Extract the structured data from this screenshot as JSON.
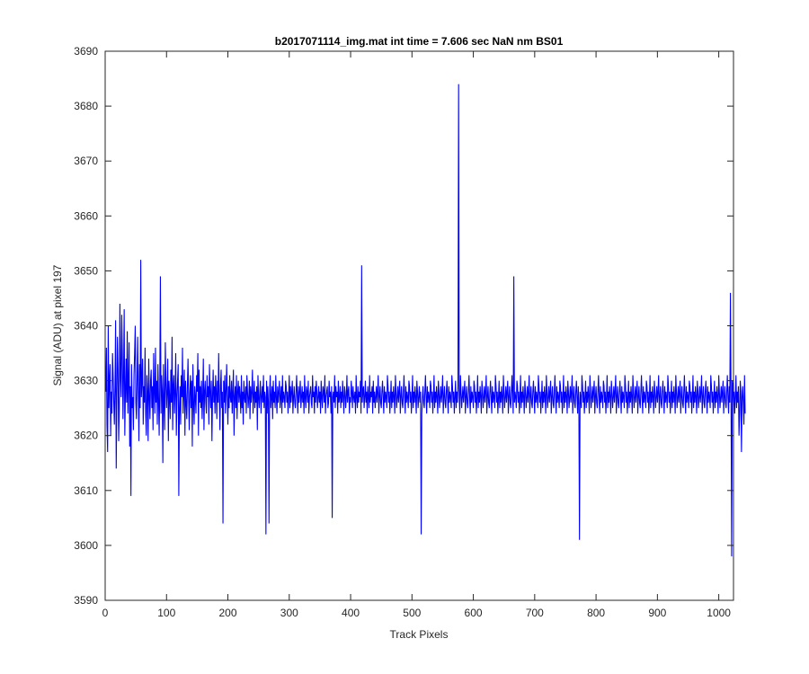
{
  "chart_data": {
    "type": "line",
    "title": "b2017071114_img.mat int time = 7.606 sec  NaN nm BS01",
    "xlabel": "Track Pixels",
    "ylabel": "Signal (ADU) at pixel 197",
    "xlim": [
      0,
      1024
    ],
    "ylim": [
      3590,
      3690
    ],
    "x_ticks": [
      0,
      100,
      200,
      300,
      400,
      500,
      600,
      700,
      800,
      900,
      1000
    ],
    "y_ticks": [
      3590,
      3600,
      3610,
      3620,
      3630,
      3640,
      3650,
      3660,
      3670,
      3680,
      3690
    ],
    "grid": false,
    "legend": "none",
    "series": [
      {
        "color": "#0000ff",
        "x_start": 1,
        "x_step": 1,
        "points_note": "",
        "values": [
          3628,
          3636,
          3622,
          3617,
          3640,
          3625,
          3630,
          3633,
          3620,
          3628,
          3624,
          3635,
          3631,
          3626,
          3622,
          3629,
          3641,
          3614,
          3627,
          3638,
          3632,
          3619,
          3625,
          3644,
          3630,
          3627,
          3642,
          3635,
          3623,
          3631,
          3643,
          3620,
          3628,
          3634,
          3626,
          3639,
          3624,
          3630,
          3637,
          3618,
          3629,
          3609,
          3633,
          3625,
          3627,
          3621,
          3631,
          3635,
          3640,
          3626,
          3623,
          3630,
          3638,
          3628,
          3619,
          3633,
          3625,
          3652,
          3627,
          3630,
          3634,
          3622,
          3629,
          3626,
          3636,
          3624,
          3620,
          3631,
          3628,
          3619,
          3634,
          3627,
          3623,
          3630,
          3632,
          3625,
          3629,
          3621,
          3635,
          3628,
          3624,
          3636,
          3626,
          3630,
          3622,
          3633,
          3627,
          3620,
          3629,
          3649,
          3624,
          3631,
          3628,
          3615,
          3633,
          3626,
          3621,
          3637,
          3630,
          3625,
          3628,
          3634,
          3619,
          3630,
          3627,
          3623,
          3632,
          3626,
          3638,
          3621,
          3629,
          3631,
          3624,
          3628,
          3635,
          3620,
          3627,
          3630,
          3633,
          3609,
          3625,
          3629,
          3622,
          3631,
          3627,
          3636,
          3624,
          3628,
          3632,
          3620,
          3630,
          3626,
          3623,
          3629,
          3634,
          3627,
          3621,
          3628,
          3631,
          3625,
          3630,
          3618,
          3633,
          3626,
          3622,
          3629,
          3627,
          3624,
          3631,
          3628,
          3635,
          3620,
          3632,
          3626,
          3629,
          3625,
          3630,
          3623,
          3627,
          3634,
          3621,
          3628,
          3630,
          3626,
          3624,
          3631,
          3627,
          3629,
          3622,
          3633,
          3628,
          3625,
          3630,
          3619,
          3627,
          3632,
          3626,
          3629,
          3624,
          3631,
          3628,
          3623,
          3630,
          3626,
          3635,
          3627,
          3621,
          3629,
          3632,
          3625,
          3628,
          3604,
          3630,
          3626,
          3631,
          3624,
          3628,
          3633,
          3627,
          3622,
          3629,
          3625,
          3631,
          3627,
          3626,
          3630,
          3624,
          3628,
          3632,
          3620,
          3627,
          3629,
          3625,
          3631,
          3623,
          3628,
          3630,
          3626,
          3629,
          3627,
          3624,
          3631,
          3625,
          3628,
          3622,
          3630,
          3627,
          3626,
          3629,
          3624,
          3631,
          3628,
          3625,
          3627,
          3630,
          3623,
          3629,
          3626,
          3628,
          3632,
          3624,
          3627,
          3630,
          3625,
          3628,
          3626,
          3629,
          3621,
          3631,
          3627,
          3625,
          3628,
          3630,
          3624,
          3627,
          3629,
          3626,
          3631,
          3625,
          3628,
          3627,
          3602,
          3630,
          3624,
          3629,
          3626,
          3604,
          3628,
          3631,
          3625,
          3627,
          3629,
          3623,
          3630,
          3626,
          3628,
          3625,
          3631,
          3627,
          3624,
          3629,
          3626,
          3628,
          3630,
          3625,
          3627,
          3629,
          3624,
          3631,
          3626,
          3628,
          3627,
          3625,
          3630,
          3629,
          3626,
          3628,
          3624,
          3627,
          3631,
          3625,
          3629,
          3626,
          3628,
          3630,
          3624,
          3627,
          3629,
          3626,
          3625,
          3628,
          3631,
          3627,
          3624,
          3629,
          3626,
          3628,
          3630,
          3625,
          3627,
          3629,
          3626,
          3628,
          3624,
          3631,
          3627,
          3625,
          3629,
          3628,
          3626,
          3630,
          3624,
          3627,
          3628,
          3629,
          3626,
          3625,
          3631,
          3627,
          3628,
          3624,
          3629,
          3626,
          3630,
          3628,
          3625,
          3627,
          3629,
          3626,
          3628,
          3624,
          3630,
          3627,
          3625,
          3629,
          3628,
          3626,
          3631,
          3624,
          3627,
          3628,
          3629,
          3625,
          3626,
          3630,
          3627,
          3628,
          3624,
          3629,
          3605,
          3627,
          3628,
          3626,
          3631,
          3625,
          3629,
          3627,
          3628,
          3624,
          3630,
          3626,
          3627,
          3629,
          3625,
          3628,
          3626,
          3630,
          3627,
          3624,
          3629,
          3628,
          3625,
          3627,
          3631,
          3626,
          3628,
          3629,
          3624,
          3627,
          3626,
          3630,
          3628,
          3625,
          3629,
          3627,
          3626,
          3628,
          3624,
          3631,
          3627,
          3625,
          3629,
          3626,
          3628,
          3627,
          3630,
          3624,
          3651,
          3626,
          3628,
          3629,
          3625,
          3627,
          3630,
          3626,
          3628,
          3624,
          3629,
          3627,
          3625,
          3631,
          3626,
          3628,
          3627,
          3629,
          3624,
          3630,
          3626,
          3628,
          3625,
          3627,
          3629,
          3626,
          3628,
          3631,
          3624,
          3627,
          3629,
          3626,
          3625,
          3628,
          3630,
          3627,
          3624,
          3629,
          3626,
          3628,
          3627,
          3625,
          3631,
          3629,
          3626,
          3628,
          3624,
          3627,
          3630,
          3625,
          3628,
          3626,
          3629,
          3627,
          3624,
          3631,
          3628,
          3625,
          3627,
          3629,
          3626,
          3628,
          3630,
          3624,
          3627,
          3629,
          3626,
          3625,
          3628,
          3631,
          3627,
          3624,
          3629,
          3626,
          3628,
          3627,
          3625,
          3630,
          3629,
          3626,
          3628,
          3624,
          3627,
          3631,
          3625,
          3628,
          3626,
          3629,
          3627,
          3624,
          3630,
          3628,
          3625,
          3627,
          3629,
          3626,
          3628,
          3602,
          3624,
          3627,
          3629,
          3626,
          3625,
          3628,
          3631,
          3627,
          3624,
          3629,
          3626,
          3628,
          3627,
          3625,
          3630,
          3629,
          3626,
          3628,
          3624,
          3627,
          3631,
          3625,
          3628,
          3626,
          3629,
          3627,
          3624,
          3630,
          3628,
          3625,
          3627,
          3629,
          3626,
          3628,
          3631,
          3624,
          3627,
          3629,
          3626,
          3625,
          3628,
          3630,
          3627,
          3624,
          3629,
          3626,
          3628,
          3627,
          3625,
          3631,
          3629,
          3626,
          3628,
          3624,
          3627,
          3630,
          3625,
          3628,
          3626,
          3629,
          3684,
          3627,
          3624,
          3631,
          3628,
          3625,
          3627,
          3629,
          3626,
          3628,
          3630,
          3624,
          3627,
          3629,
          3626,
          3625,
          3628,
          3631,
          3627,
          3624,
          3629,
          3626,
          3628,
          3627,
          3625,
          3630,
          3629,
          3626,
          3628,
          3624,
          3627,
          3631,
          3625,
          3628,
          3626,
          3629,
          3627,
          3624,
          3630,
          3628,
          3625,
          3627,
          3629,
          3626,
          3628,
          3631,
          3624,
          3627,
          3629,
          3626,
          3625,
          3628,
          3630,
          3627,
          3624,
          3629,
          3626,
          3628,
          3627,
          3625,
          3631,
          3629,
          3626,
          3628,
          3624,
          3627,
          3630,
          3625,
          3628,
          3626,
          3629,
          3627,
          3624,
          3631,
          3628,
          3625,
          3627,
          3629,
          3626,
          3628,
          3630,
          3624,
          3627,
          3629,
          3626,
          3625,
          3628,
          3631,
          3627,
          3624,
          3649,
          3626,
          3628,
          3627,
          3625,
          3630,
          3629,
          3626,
          3628,
          3624,
          3627,
          3631,
          3625,
          3628,
          3626,
          3629,
          3627,
          3624,
          3630,
          3628,
          3625,
          3627,
          3629,
          3626,
          3628,
          3631,
          3624,
          3627,
          3629,
          3626,
          3625,
          3628,
          3630,
          3627,
          3624,
          3629,
          3626,
          3628,
          3627,
          3625,
          3631,
          3629,
          3626,
          3628,
          3624,
          3627,
          3630,
          3625,
          3628,
          3626,
          3629,
          3627,
          3624,
          3631,
          3628,
          3625,
          3627,
          3629,
          3626,
          3628,
          3630,
          3624,
          3627,
          3629,
          3626,
          3625,
          3628,
          3631,
          3627,
          3624,
          3629,
          3626,
          3628,
          3627,
          3625,
          3630,
          3629,
          3626,
          3628,
          3624,
          3627,
          3631,
          3625,
          3628,
          3626,
          3629,
          3627,
          3624,
          3630,
          3628,
          3625,
          3627,
          3629,
          3626,
          3628,
          3631,
          3624,
          3627,
          3629,
          3626,
          3625,
          3628,
          3630,
          3627,
          3624,
          3629,
          3626,
          3601,
          3628,
          3627,
          3625,
          3631,
          3629,
          3626,
          3628,
          3624,
          3627,
          3630,
          3625,
          3628,
          3626,
          3629,
          3627,
          3624,
          3631,
          3628,
          3625,
          3627,
          3629,
          3626,
          3628,
          3630,
          3624,
          3627,
          3629,
          3626,
          3625,
          3628,
          3631,
          3627,
          3624,
          3629,
          3626,
          3628,
          3627,
          3625,
          3630,
          3629,
          3626,
          3628,
          3624,
          3627,
          3631,
          3625,
          3628,
          3626,
          3629,
          3627,
          3624,
          3630,
          3628,
          3625,
          3627,
          3629,
          3626,
          3628,
          3631,
          3624,
          3627,
          3629,
          3626,
          3625,
          3628,
          3630,
          3627,
          3624,
          3629,
          3626,
          3628,
          3627,
          3625,
          3631,
          3629,
          3626,
          3628,
          3624,
          3627,
          3630,
          3625,
          3628,
          3626,
          3629,
          3627,
          3624,
          3631,
          3628,
          3625,
          3627,
          3629,
          3626,
          3628,
          3630,
          3624,
          3627,
          3629,
          3626,
          3625,
          3628,
          3631,
          3627,
          3624,
          3629,
          3626,
          3628,
          3627,
          3625,
          3630,
          3629,
          3626,
          3628,
          3624,
          3627,
          3631,
          3625,
          3628,
          3626,
          3629,
          3627,
          3624,
          3630,
          3628,
          3625,
          3627,
          3629,
          3626,
          3628,
          3631,
          3624,
          3627,
          3629,
          3626,
          3625,
          3628,
          3630,
          3627,
          3624,
          3629,
          3626,
          3628,
          3627,
          3625,
          3631,
          3629,
          3626,
          3628,
          3624,
          3627,
          3630,
          3625,
          3628,
          3626,
          3629,
          3627,
          3624,
          3631,
          3628,
          3625,
          3627,
          3629,
          3626,
          3628,
          3630,
          3624,
          3627,
          3629,
          3626,
          3625,
          3628,
          3631,
          3627,
          3624,
          3629,
          3626,
          3628,
          3627,
          3625,
          3630,
          3629,
          3626,
          3628,
          3624,
          3627,
          3631,
          3625,
          3628,
          3626,
          3629,
          3627,
          3624,
          3630,
          3628,
          3625,
          3627,
          3629,
          3626,
          3628,
          3631,
          3624,
          3627,
          3629,
          3626,
          3625,
          3628,
          3630,
          3627,
          3624,
          3629,
          3626,
          3628,
          3627,
          3625,
          3631,
          3629,
          3626,
          3628,
          3624,
          3627,
          3630,
          3625,
          3628,
          3626,
          3629,
          3627,
          3624,
          3631,
          3628,
          3625,
          3627,
          3629,
          3626,
          3628,
          3630,
          3624,
          3627,
          3629,
          3626,
          3625,
          3628,
          3631,
          3627,
          3624,
          3629,
          3626,
          3646,
          3627,
          3598,
          3630,
          3629,
          3626,
          3628,
          3624,
          3627,
          3631,
          3625,
          3628,
          3626,
          3629,
          3620,
          3624,
          3630,
          3628,
          3617,
          3627,
          3629,
          3626,
          3622,
          3631,
          3624
        ]
      }
    ]
  }
}
